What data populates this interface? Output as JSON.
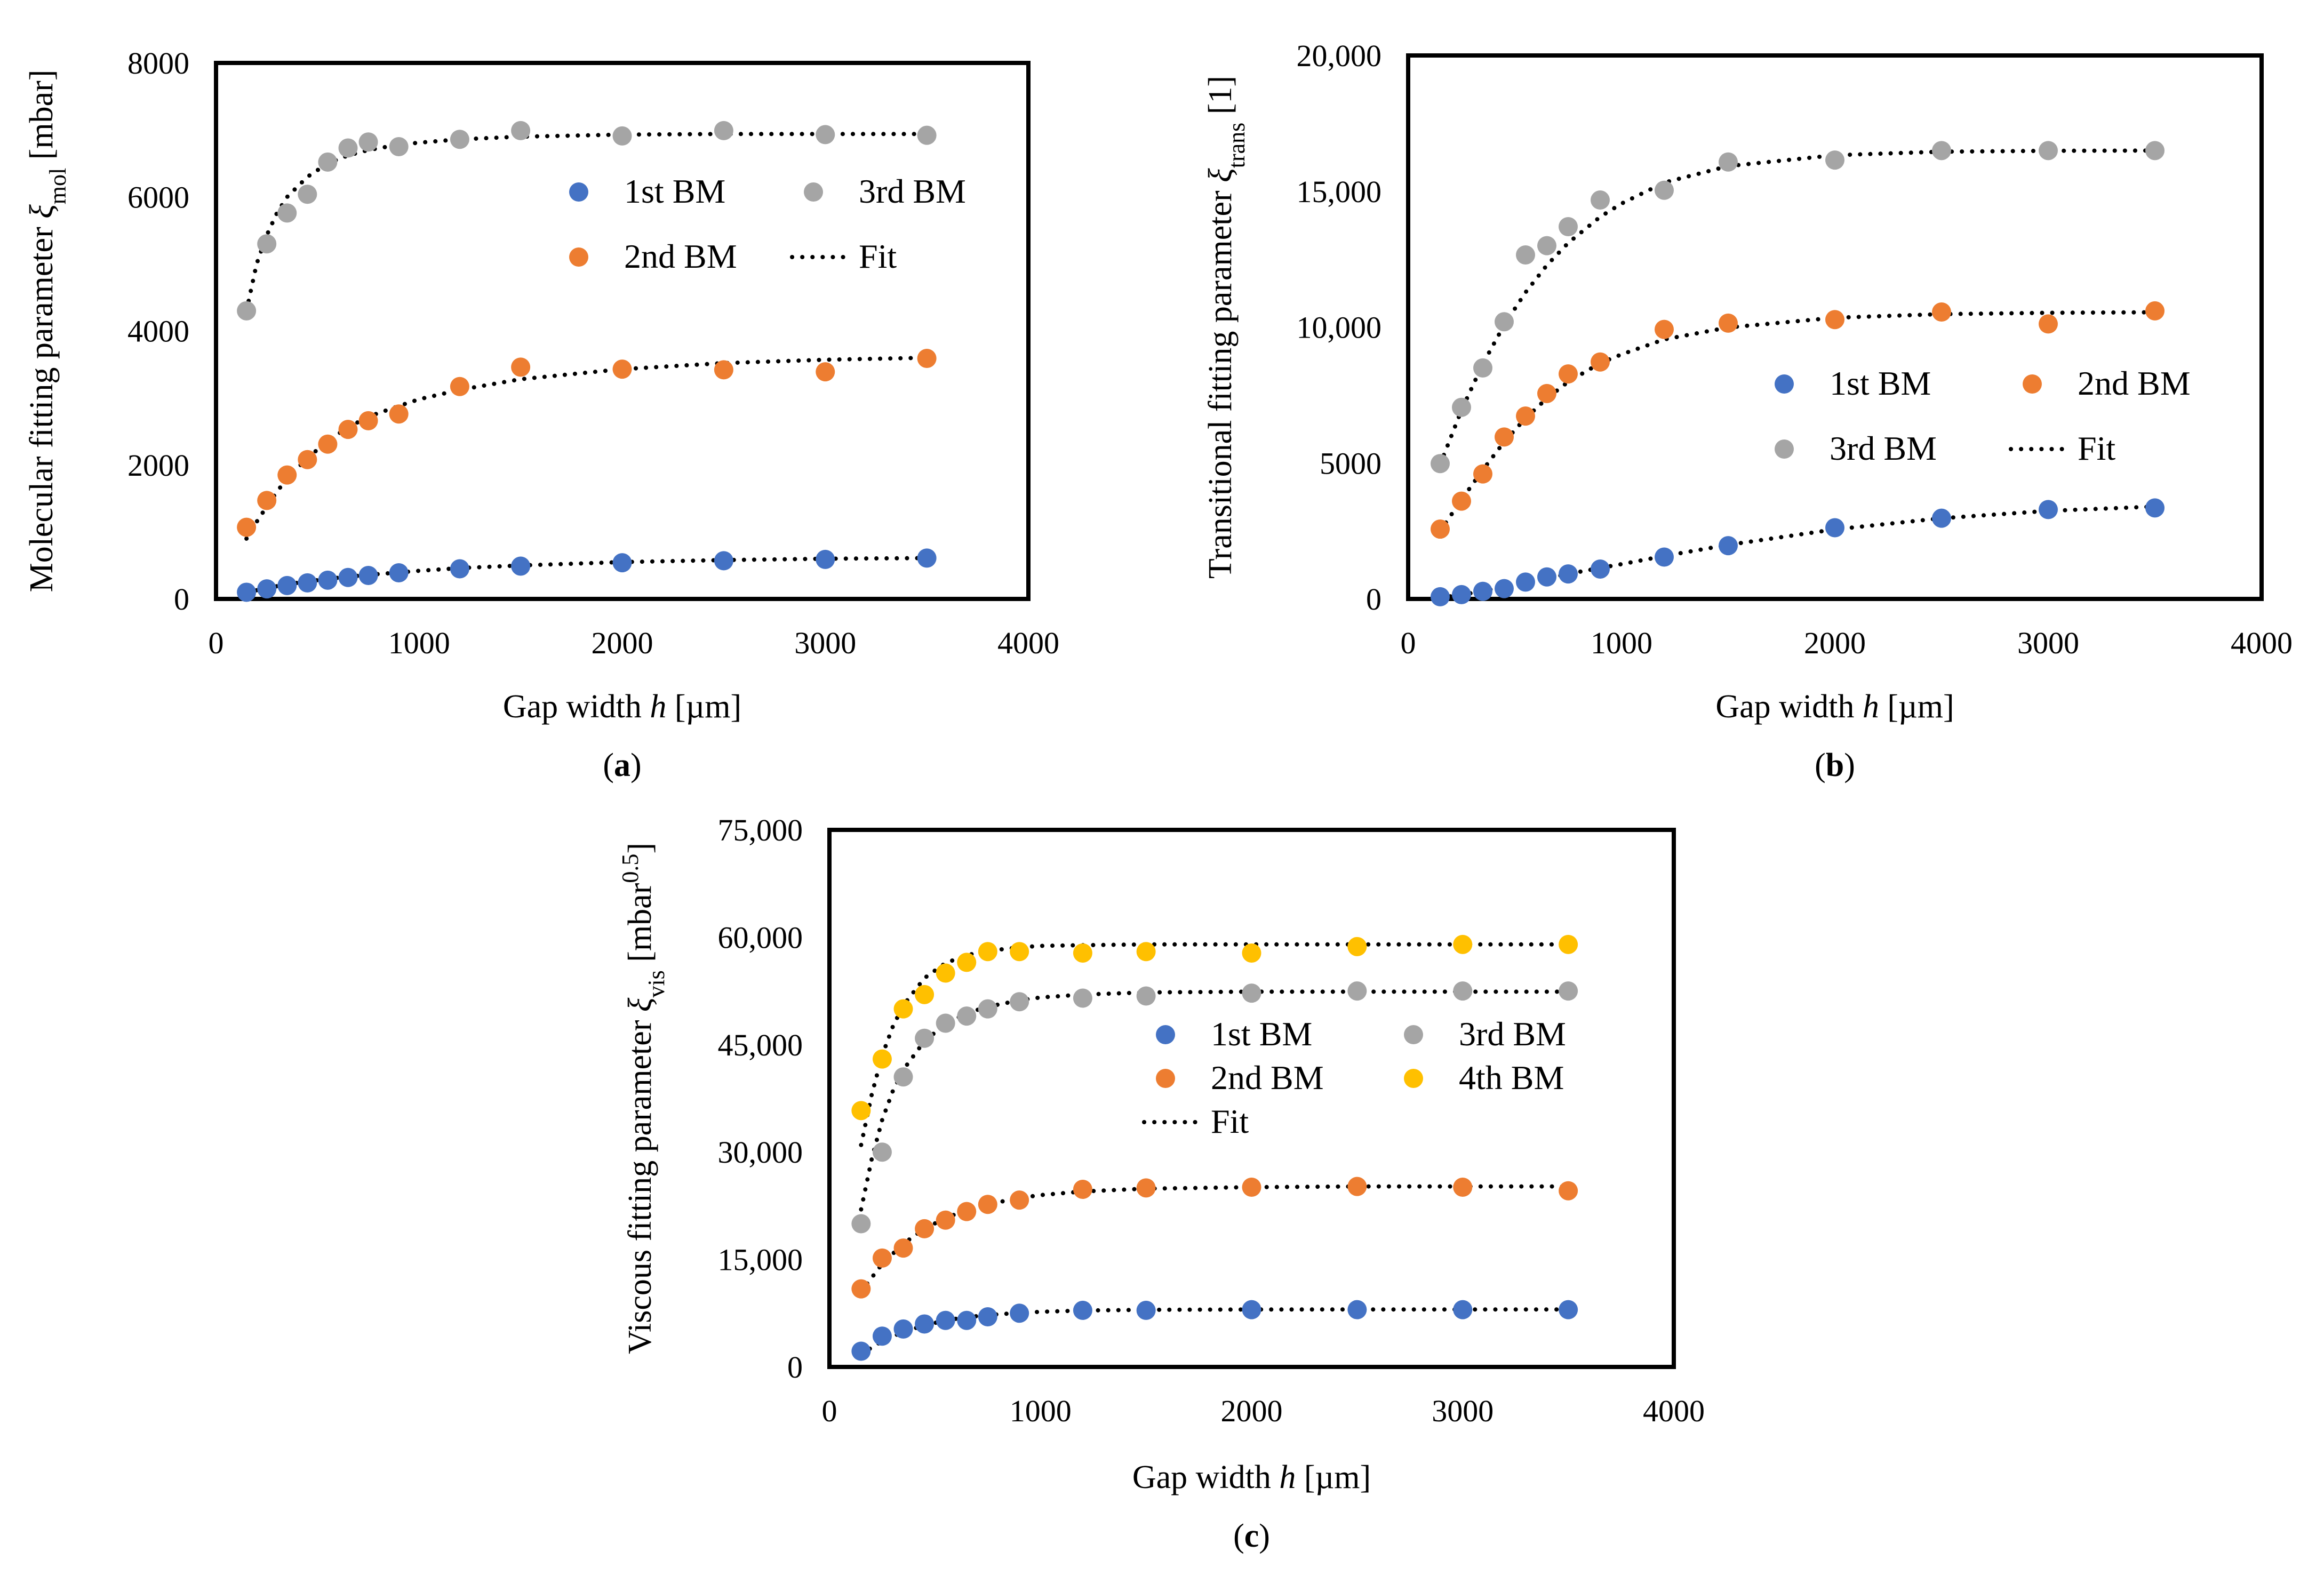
{
  "figure": {
    "colors": {
      "1st BM": "#4472C4",
      "2nd BM": "#ED7D31",
      "3rd BM": "#A5A5A5",
      "4th BM": "#FFC000",
      "fit": "#000000"
    }
  },
  "chart_data": [
    {
      "id": "a",
      "type": "scatter",
      "panel_label": "a",
      "title": "",
      "xlabel_prefix": "Gap width ",
      "xlabel_var": "h",
      "xlabel_suffix": " [µm]",
      "ylabel_prefix": "Molecular fitting parameter ",
      "ylabel_symbol": "ξ",
      "ylabel_sub": "mol",
      "ylabel_suffix": " [mbar]",
      "ylabel_sup": "",
      "ylabel_after": "",
      "xlim": [
        0,
        4000
      ],
      "ylim": [
        0,
        8000
      ],
      "xticks": [
        0,
        1000,
        2000,
        3000,
        4000
      ],
      "yticks": [
        0,
        2000,
        4000,
        6000,
        8000
      ],
      "xtick_labels": [
        "0",
        "1000",
        "2000",
        "3000",
        "4000"
      ],
      "ytick_labels": [
        "0",
        "2000",
        "4000",
        "6000",
        "8000"
      ],
      "fit_label": "Fit",
      "series": [
        {
          "name": "1st BM",
          "x": [
            150,
            250,
            350,
            450,
            550,
            650,
            750,
            900,
            1200,
            1500,
            2000,
            2500,
            3000,
            3500
          ],
          "y": [
            100,
            150,
            200,
            240,
            280,
            320,
            350,
            390,
            450,
            490,
            540,
            570,
            590,
            610
          ]
        },
        {
          "name": "2nd BM",
          "x": [
            150,
            250,
            350,
            450,
            550,
            650,
            750,
            900,
            1200,
            1500,
            2000,
            2500,
            3000,
            3500
          ],
          "y": [
            1070,
            1470,
            1850,
            2080,
            2310,
            2530,
            2660,
            2760,
            3170,
            3460,
            3430,
            3420,
            3390,
            3590
          ]
        },
        {
          "name": "3rd BM",
          "x": [
            150,
            250,
            350,
            450,
            550,
            650,
            750,
            900,
            1200,
            1500,
            2000,
            2500,
            3000,
            3500
          ],
          "y": [
            4300,
            5300,
            5760,
            6040,
            6520,
            6730,
            6820,
            6750,
            6860,
            6990,
            6910,
            6990,
            6930,
            6920
          ]
        }
      ],
      "fits": [
        {
          "x": [
            150,
            200,
            250,
            300,
            350,
            450,
            550,
            650,
            750,
            900,
            1000,
            1200,
            1500,
            2000,
            2500,
            3000,
            3500
          ],
          "y": [
            100,
            130,
            160,
            190,
            220,
            260,
            300,
            330,
            360,
            395,
            420,
            460,
            500,
            550,
            580,
            600,
            610
          ]
        },
        {
          "x": [
            150,
            200,
            250,
            300,
            350,
            450,
            550,
            650,
            750,
            900,
            1000,
            1200,
            1500,
            2000,
            2500,
            3000,
            3500
          ],
          "y": [
            900,
            1150,
            1380,
            1600,
            1800,
            2100,
            2360,
            2560,
            2720,
            2880,
            2980,
            3120,
            3280,
            3430,
            3520,
            3570,
            3600
          ]
        },
        {
          "x": [
            150,
            200,
            250,
            300,
            350,
            450,
            550,
            650,
            750,
            900,
            1000,
            1200,
            1500,
            2000,
            2500,
            3000,
            3500
          ],
          "y": [
            4300,
            5000,
            5430,
            5760,
            6000,
            6300,
            6500,
            6620,
            6700,
            6780,
            6810,
            6860,
            6900,
            6930,
            6940,
            6940,
            6940
          ]
        }
      ],
      "legend": {
        "placement": "upper-right",
        "layout": "grid",
        "entries": [
          {
            "label": "1st BM",
            "kind": "marker",
            "series": "1st BM"
          },
          {
            "label": "3rd BM",
            "kind": "marker",
            "series": "3rd BM"
          },
          {
            "label": "2nd BM",
            "kind": "marker",
            "series": "2nd BM"
          },
          {
            "label": "Fit",
            "kind": "line",
            "series": "fit"
          }
        ]
      }
    },
    {
      "id": "b",
      "type": "scatter",
      "panel_label": "b",
      "title": "",
      "xlabel_prefix": "Gap width ",
      "xlabel_var": "h",
      "xlabel_suffix": " [µm]",
      "ylabel_prefix": "Transitional fitting parameter ",
      "ylabel_symbol": "ξ",
      "ylabel_sub": "trans",
      "ylabel_suffix": " [1]",
      "ylabel_sup": "",
      "ylabel_after": "",
      "xlim": [
        0,
        4000
      ],
      "ylim": [
        0,
        20000
      ],
      "xticks": [
        0,
        1000,
        2000,
        3000,
        4000
      ],
      "yticks": [
        0,
        5000,
        10000,
        15000,
        20000
      ],
      "xtick_labels": [
        "0",
        "1000",
        "2000",
        "3000",
        "4000"
      ],
      "ytick_labels": [
        "0",
        "5000",
        "10,000",
        "15,000",
        "20,000"
      ],
      "fit_label": "Fit",
      "series": [
        {
          "name": "1st BM",
          "x": [
            150,
            250,
            350,
            450,
            550,
            650,
            750,
            900,
            1200,
            1500,
            2000,
            2500,
            3000,
            3500
          ],
          "y": [
            80,
            160,
            280,
            380,
            620,
            810,
            920,
            1100,
            1540,
            1960,
            2620,
            2970,
            3290,
            3350
          ]
        },
        {
          "name": "2nd BM",
          "x": [
            150,
            250,
            350,
            450,
            550,
            650,
            750,
            900,
            1200,
            1500,
            2000,
            2500,
            3000,
            3500
          ],
          "y": [
            2570,
            3600,
            4600,
            5960,
            6730,
            7560,
            8280,
            8720,
            9920,
            10150,
            10280,
            10560,
            10120,
            10600
          ]
        },
        {
          "name": "3rd BM",
          "x": [
            150,
            250,
            350,
            450,
            550,
            650,
            750,
            900,
            1200,
            1500,
            2000,
            2500,
            3000,
            3500
          ],
          "y": [
            4980,
            7050,
            8500,
            10200,
            12660,
            13000,
            13700,
            14680,
            15040,
            16080,
            16150,
            16500,
            16500,
            16500
          ]
        }
      ],
      "fits": [
        {
          "x": [
            150,
            250,
            350,
            450,
            550,
            650,
            750,
            900,
            1000,
            1200,
            1500,
            2000,
            2500,
            3000,
            3500
          ],
          "y": [
            50,
            150,
            290,
            440,
            600,
            760,
            920,
            1140,
            1280,
            1580,
            1990,
            2560,
            2970,
            3240,
            3400
          ]
        },
        {
          "x": [
            150,
            250,
            350,
            450,
            550,
            650,
            750,
            900,
            1000,
            1200,
            1500,
            2000,
            2500,
            3000,
            3500
          ],
          "y": [
            2500,
            3650,
            4750,
            5780,
            6650,
            7380,
            7990,
            8680,
            9000,
            9550,
            9990,
            10350,
            10480,
            10530,
            10550
          ]
        },
        {
          "x": [
            150,
            250,
            350,
            450,
            550,
            650,
            750,
            900,
            1000,
            1200,
            1500,
            2000,
            2500,
            3000,
            3500
          ],
          "y": [
            4950,
            6950,
            8650,
            10080,
            11280,
            12280,
            13100,
            14060,
            14550,
            15320,
            15930,
            16330,
            16460,
            16490,
            16500
          ]
        }
      ],
      "legend": {
        "placement": "middle-right",
        "layout": "grid",
        "entries": [
          {
            "label": "1st BM",
            "kind": "marker",
            "series": "1st BM"
          },
          {
            "label": "2nd BM",
            "kind": "marker",
            "series": "2nd BM"
          },
          {
            "label": "3rd BM",
            "kind": "marker",
            "series": "3rd BM"
          },
          {
            "label": "Fit",
            "kind": "line",
            "series": "fit"
          }
        ]
      }
    },
    {
      "id": "c",
      "type": "scatter",
      "panel_label": "c",
      "title": "",
      "xlabel_prefix": "Gap width ",
      "xlabel_var": "h",
      "xlabel_suffix": " [µm]",
      "ylabel_prefix": "Viscous fitting parameter ",
      "ylabel_symbol": "ξ",
      "ylabel_sub": "vis",
      "ylabel_suffix": " [mbar",
      "ylabel_sup": "0.5",
      "ylabel_after": "]",
      "xlim": [
        0,
        4000
      ],
      "ylim": [
        0,
        75000
      ],
      "xticks": [
        0,
        1000,
        2000,
        3000,
        4000
      ],
      "yticks": [
        0,
        15000,
        30000,
        45000,
        60000,
        75000
      ],
      "xtick_labels": [
        "0",
        "1000",
        "2000",
        "3000",
        "4000"
      ],
      "ytick_labels": [
        "0",
        "15,000",
        "30,000",
        "45,000",
        "60,000",
        "75,000"
      ],
      "fit_label": "Fit",
      "series": [
        {
          "name": "1st BM",
          "x": [
            150,
            250,
            350,
            450,
            550,
            650,
            750,
            900,
            1200,
            1500,
            2000,
            2500,
            3000,
            3500
          ],
          "y": [
            2200,
            4300,
            5300,
            6000,
            6500,
            6500,
            7000,
            7500,
            7900,
            7900,
            8000,
            8000,
            8000,
            8000
          ]
        },
        {
          "name": "2nd BM",
          "x": [
            150,
            250,
            350,
            450,
            550,
            650,
            750,
            900,
            1200,
            1500,
            2000,
            2500,
            3000,
            3500
          ],
          "y": [
            10900,
            15200,
            16600,
            19300,
            20500,
            21700,
            22700,
            23300,
            24800,
            25000,
            25100,
            25200,
            25100,
            24600
          ]
        },
        {
          "name": "3rd BM",
          "x": [
            150,
            250,
            350,
            450,
            550,
            650,
            750,
            900,
            1200,
            1500,
            2000,
            2500,
            3000,
            3500
          ],
          "y": [
            20000,
            30000,
            40500,
            45900,
            48000,
            49000,
            50000,
            51000,
            51500,
            51800,
            52200,
            52500,
            52500,
            52500
          ]
        },
        {
          "name": "4th BM",
          "x": [
            150,
            250,
            350,
            450,
            550,
            650,
            750,
            900,
            1200,
            1500,
            2000,
            2500,
            3000,
            3500
          ],
          "y": [
            35800,
            43000,
            50000,
            52000,
            55000,
            56500,
            58000,
            58000,
            57800,
            58000,
            57800,
            58700,
            59000,
            59000
          ]
        }
      ],
      "fits": [
        {
          "x": [
            150,
            250,
            350,
            450,
            550,
            650,
            750,
            900,
            1000,
            1200,
            1500,
            2000,
            2500,
            3000,
            3500
          ],
          "y": [
            1800,
            3600,
            4900,
            5800,
            6500,
            6950,
            7250,
            7550,
            7700,
            7880,
            7980,
            8020,
            8030,
            8030,
            8030
          ]
        },
        {
          "x": [
            150,
            250,
            350,
            450,
            550,
            650,
            750,
            900,
            1000,
            1200,
            1500,
            2000,
            2500,
            3000,
            3500
          ],
          "y": [
            10500,
            14400,
            17200,
            19300,
            20800,
            21900,
            22700,
            23600,
            24000,
            24500,
            24900,
            25100,
            25200,
            25200,
            25200
          ]
        },
        {
          "x": [
            150,
            200,
            250,
            300,
            350,
            450,
            550,
            650,
            750,
            900,
            1000,
            1200,
            1500,
            2000,
            2500,
            3000,
            3500
          ],
          "y": [
            22000,
            29000,
            34500,
            38500,
            41500,
            45500,
            47900,
            49400,
            50300,
            51200,
            51600,
            52000,
            52300,
            52400,
            52400,
            52400,
            52400
          ]
        },
        {
          "x": [
            150,
            200,
            250,
            300,
            350,
            450,
            550,
            650,
            750,
            900,
            1000,
            1200,
            1500,
            2000,
            2500,
            3000,
            3500
          ],
          "y": [
            31000,
            38000,
            43500,
            47500,
            50500,
            54300,
            56400,
            57500,
            58100,
            58600,
            58800,
            58900,
            59000,
            59000,
            59000,
            59000,
            59000
          ]
        }
      ],
      "legend": {
        "placement": "center-right",
        "layout": "grid",
        "entries": [
          {
            "label": "1st BM",
            "kind": "marker",
            "series": "1st BM"
          },
          {
            "label": "3rd BM",
            "kind": "marker",
            "series": "3rd BM"
          },
          {
            "label": "2nd BM",
            "kind": "marker",
            "series": "2nd BM"
          },
          {
            "label": "4th BM",
            "kind": "marker",
            "series": "4th BM"
          },
          {
            "label": "Fit",
            "kind": "line",
            "series": "fit"
          }
        ]
      }
    }
  ]
}
